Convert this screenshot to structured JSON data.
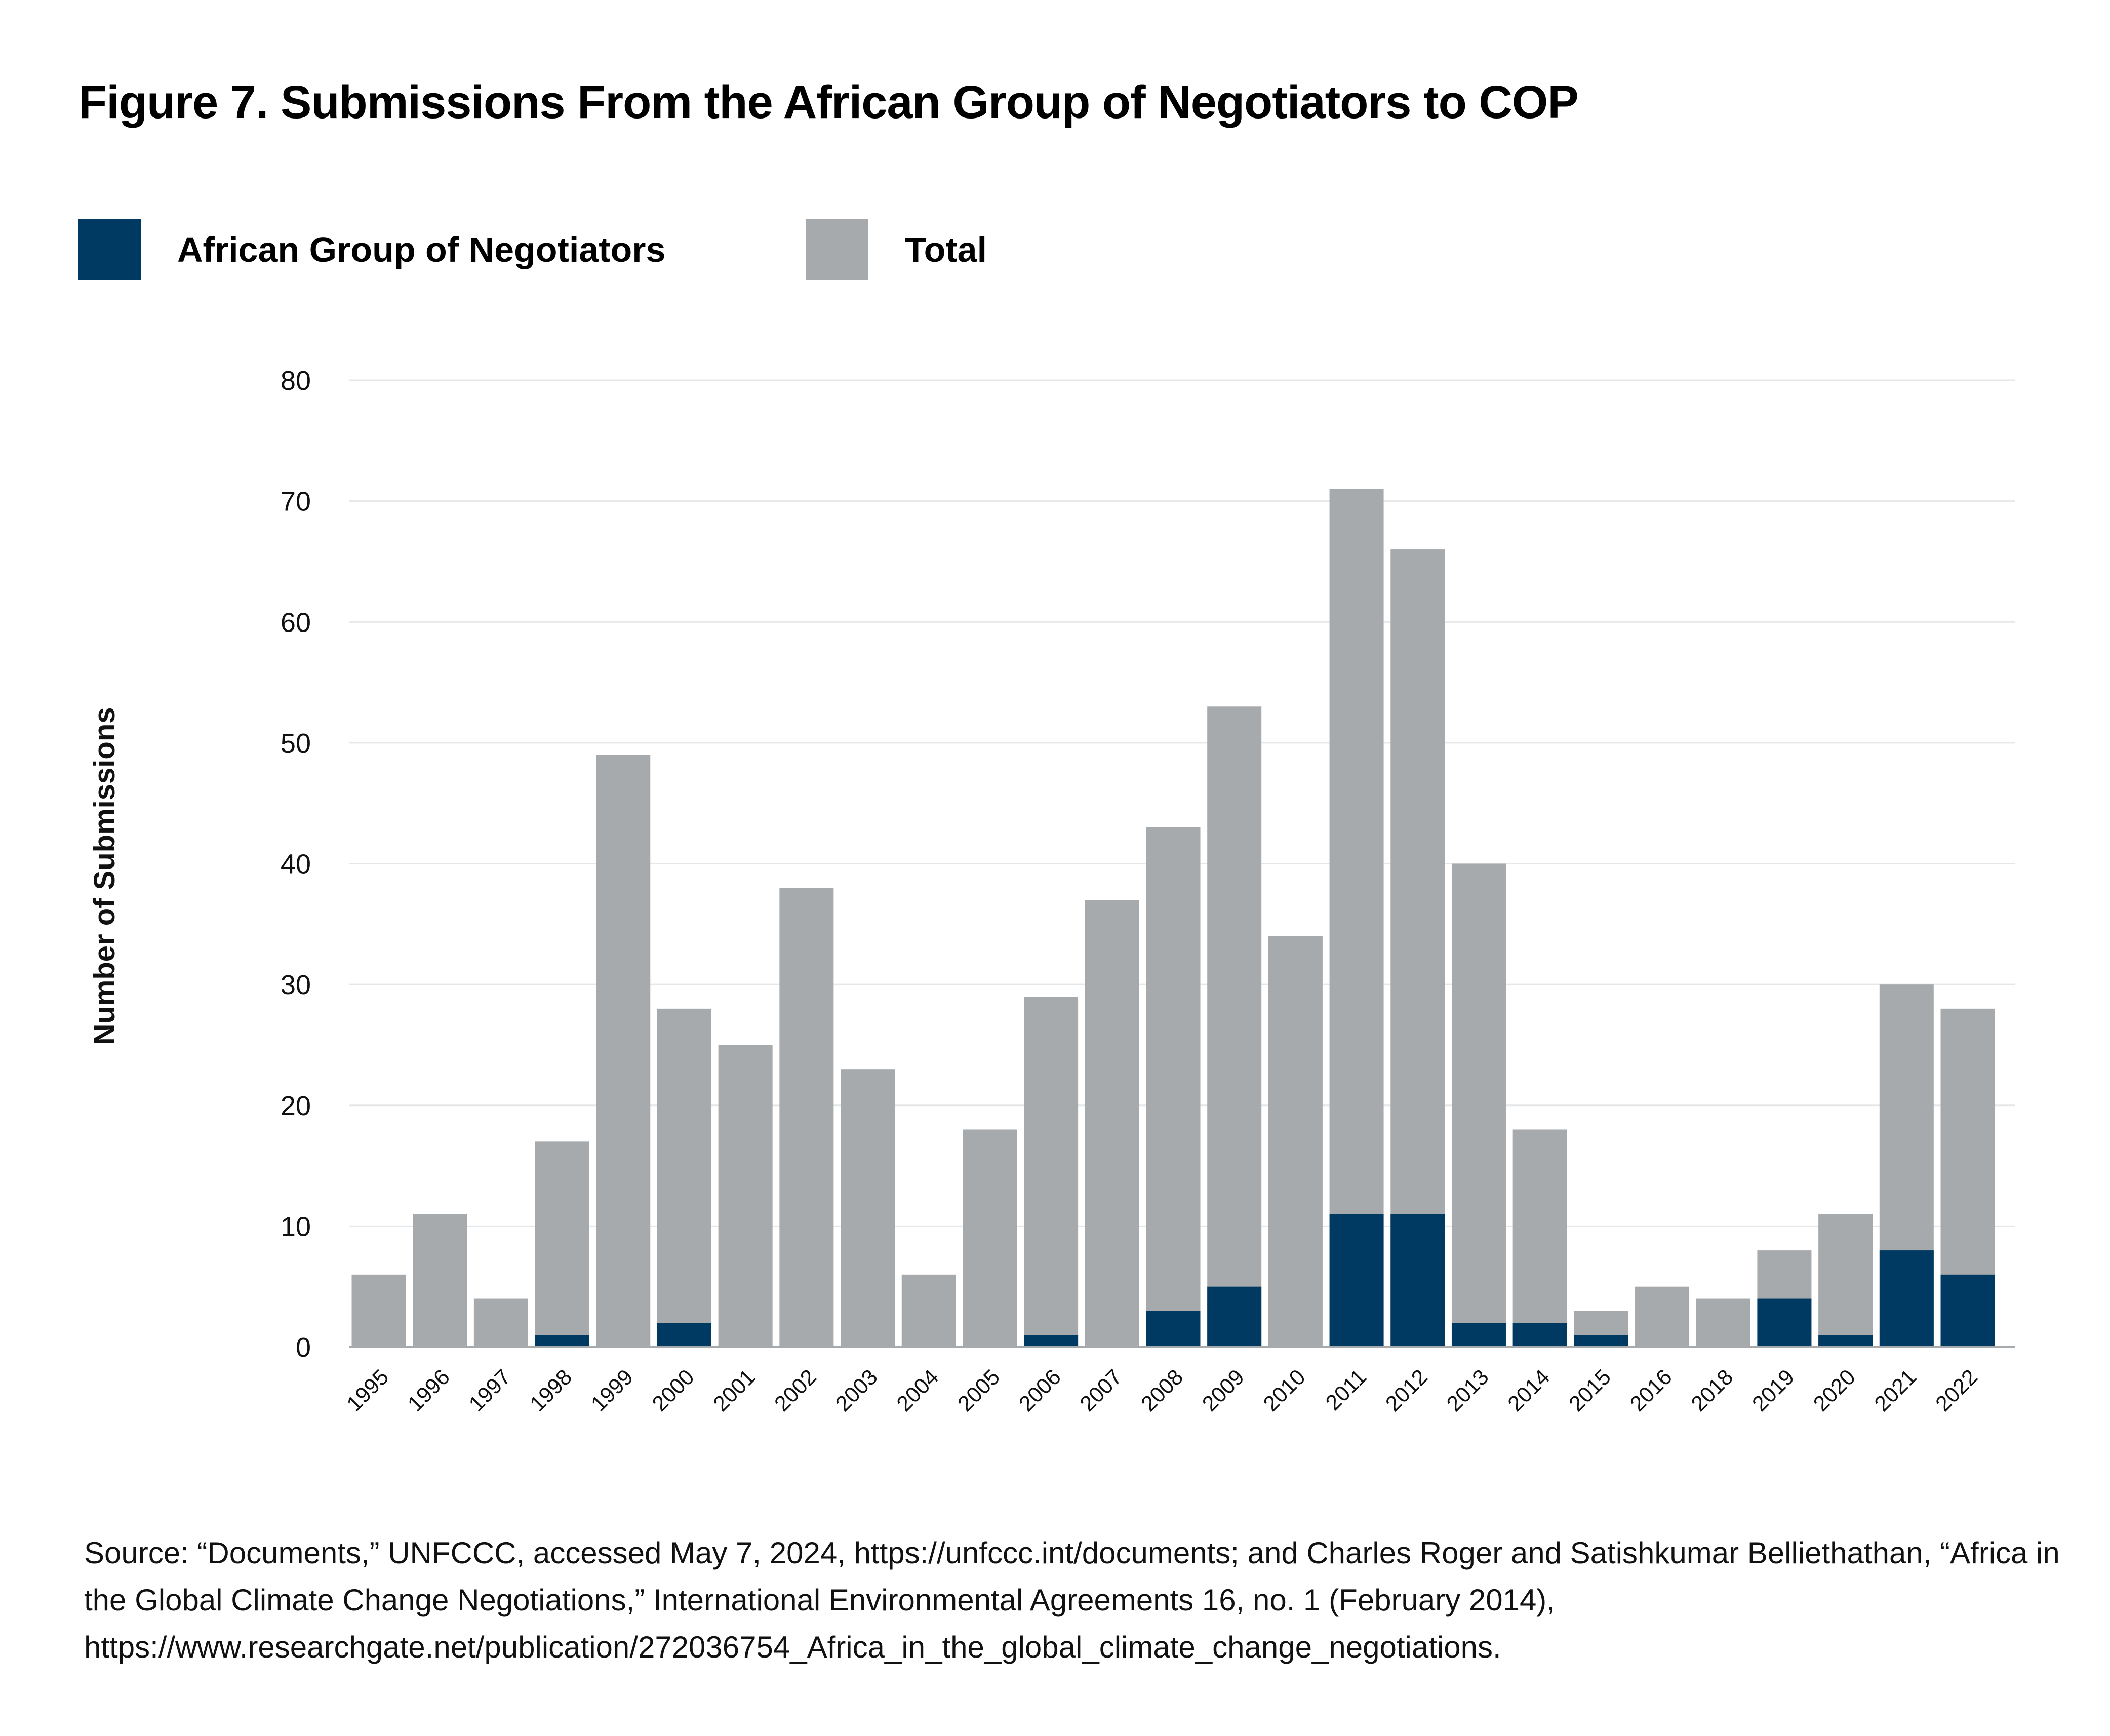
{
  "chart_data": {
    "type": "bar",
    "stacking": "overlapping",
    "title": "Figure 7. Submissions From the African Group of Negotiators to COP",
    "xlabel": "",
    "ylabel": "Number of Submissions",
    "ylim": [
      0,
      80
    ],
    "yticks": [
      0,
      10,
      20,
      30,
      40,
      50,
      60,
      70,
      80
    ],
    "grid": true,
    "legend_placement": "top-left",
    "categories": [
      "1995",
      "1996",
      "1997",
      "1998",
      "1999",
      "2000",
      "2001",
      "2002",
      "2003",
      "2004",
      "2005",
      "2006",
      "2007",
      "2008",
      "2009",
      "2010",
      "2011",
      "2012",
      "2013",
      "2014",
      "2015",
      "2016",
      "2018",
      "2019",
      "2020",
      "2021",
      "2022"
    ],
    "series": [
      {
        "name": "Total",
        "color": "#a7aaad",
        "values": [
          6,
          11,
          4,
          17,
          49,
          28,
          25,
          38,
          23,
          6,
          18,
          29,
          37,
          43,
          53,
          34,
          71,
          66,
          40,
          18,
          3,
          5,
          4,
          8,
          11,
          30,
          28
        ]
      },
      {
        "name": "African Group of Negotiators",
        "color": "#003a63",
        "values": [
          0,
          0,
          0,
          1,
          0,
          2,
          0,
          0,
          0,
          0,
          0,
          1,
          0,
          3,
          5,
          0,
          11,
          11,
          2,
          2,
          1,
          0,
          0,
          4,
          1,
          8,
          6
        ]
      }
    ],
    "source": "Source: “Documents,” UNFCCC, accessed May 7, 2024, https://unfccc.int/documents; and Charles Roger and Satishkumar Belliethathan, “Africa in the Global Climate Change Negotiations,” International Environmental Agreements 16, no. 1 (February 2014), https://www.researchgate.net/publication/272036754_Africa_in_the_global_climate_change_negotiations."
  },
  "legend": [
    {
      "label": "African Group of Negotiators",
      "color": "#003a63"
    },
    {
      "label": "Total",
      "color": "#a7aaad"
    }
  ]
}
